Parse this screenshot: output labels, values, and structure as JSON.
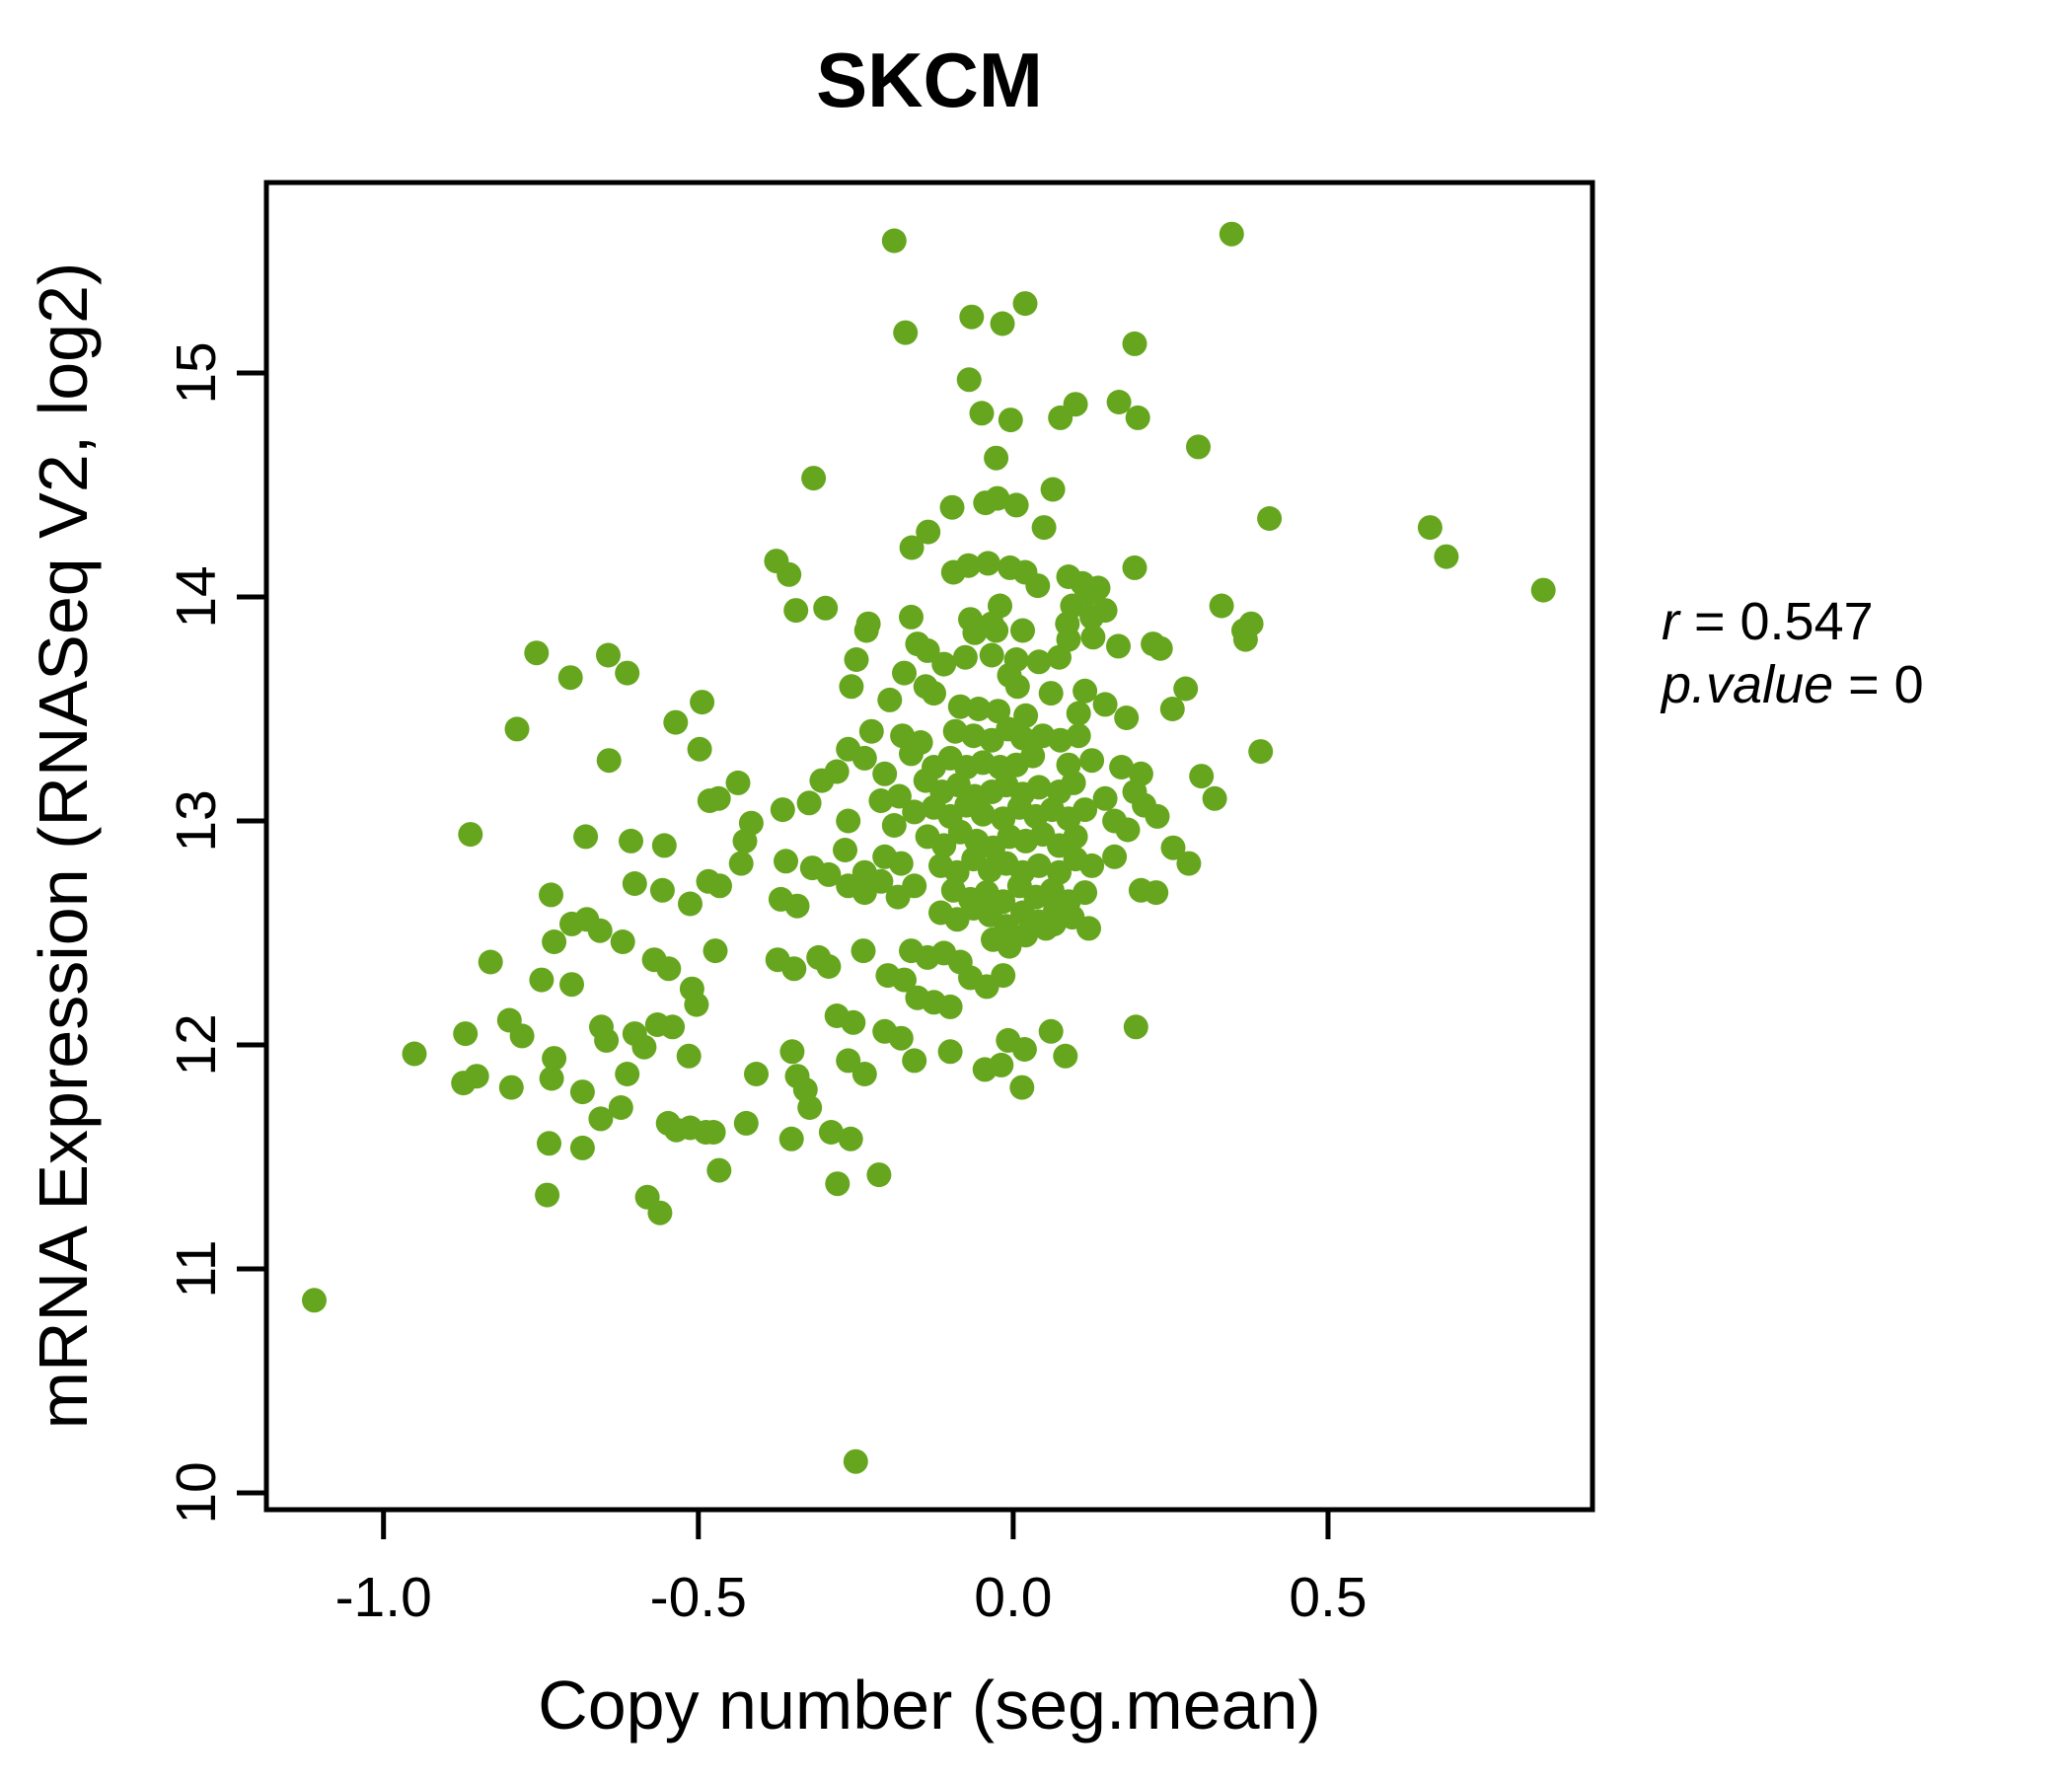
{
  "title": "SKCM",
  "colors": {
    "accent_green": "#66A61E",
    "axis_black": "#000000",
    "background": "#FFFFFF"
  },
  "annotation": {
    "line1_var": "r",
    "line1_rest": " = 0.547",
    "line2_var": "p.value",
    "line2_rest": " = 0"
  },
  "chart_data": {
    "type": "scatter",
    "title": "SKCM",
    "xlabel": "Copy number (seg.mean)",
    "ylabel": "mRNA Expression (RNASeq V2, log2)",
    "xlim": [
      -1.186,
      0.92
    ],
    "ylim": [
      9.925,
      15.85
    ],
    "xticks": [
      -1.0,
      -0.5,
      0.0,
      0.5
    ],
    "xtick_labels": [
      "-1.0",
      "-0.5",
      "0.0",
      "0.5"
    ],
    "yticks": [
      10,
      11,
      12,
      13,
      14,
      15
    ],
    "ytick_labels": [
      "10",
      "11",
      "12",
      "13",
      "14",
      "15"
    ],
    "grid": false,
    "legend": null,
    "correlation": {
      "r": 0.547,
      "p_value": 0
    },
    "points": [
      [
        -0.189,
        15.59
      ],
      [
        0.019,
        15.31
      ],
      [
        -0.066,
        15.25
      ],
      [
        -0.017,
        15.22
      ],
      [
        -0.171,
        15.18
      ],
      [
        0.193,
        15.13
      ],
      [
        -0.07,
        14.97
      ],
      [
        -0.05,
        14.82
      ],
      [
        -0.004,
        14.79
      ],
      [
        0.075,
        14.8
      ],
      [
        0.099,
        14.86
      ],
      [
        0.168,
        14.87
      ],
      [
        0.198,
        14.8
      ],
      [
        -0.027,
        14.62
      ],
      [
        -0.317,
        14.53
      ],
      [
        -0.097,
        14.4
      ],
      [
        -0.044,
        14.42
      ],
      [
        -0.025,
        14.44
      ],
      [
        0.005,
        14.41
      ],
      [
        0.063,
        14.48
      ],
      [
        0.049,
        14.31
      ],
      [
        -0.135,
        14.29
      ],
      [
        -0.161,
        14.22
      ],
      [
        -0.376,
        14.16
      ],
      [
        -0.356,
        14.1
      ],
      [
        -0.095,
        14.11
      ],
      [
        -0.071,
        14.14
      ],
      [
        -0.04,
        14.15
      ],
      [
        -0.005,
        14.13
      ],
      [
        0.019,
        14.11
      ],
      [
        0.039,
        14.05
      ],
      [
        0.088,
        14.09
      ],
      [
        0.11,
        14.06
      ],
      [
        0.125,
        14.03
      ],
      [
        0.193,
        14.13
      ],
      [
        -0.021,
        13.96
      ],
      [
        -0.162,
        13.91
      ],
      [
        -0.345,
        13.94
      ],
      [
        -0.298,
        13.95
      ],
      [
        -0.23,
        13.88
      ],
      [
        -0.068,
        13.9
      ],
      [
        -0.034,
        13.88
      ],
      [
        0.094,
        13.96
      ],
      [
        0.117,
        14.01
      ],
      [
        0.135,
        14.04
      ],
      [
        0.146,
        13.94
      ],
      [
        0.125,
        13.91
      ],
      [
        0.086,
        13.88
      ],
      [
        0.347,
        15.62
      ],
      [
        0.294,
        14.67
      ],
      [
        0.407,
        14.35
      ],
      [
        0.662,
        14.31
      ],
      [
        0.688,
        14.18
      ],
      [
        0.842,
        14.03
      ],
      [
        0.331,
        13.96
      ],
      [
        0.378,
        13.88
      ],
      [
        -0.757,
        13.75
      ],
      [
        -0.643,
        13.74
      ],
      [
        -0.703,
        13.64
      ],
      [
        -0.613,
        13.66
      ],
      [
        -0.536,
        13.44
      ],
      [
        -0.494,
        13.53
      ],
      [
        -0.788,
        13.41
      ],
      [
        -0.642,
        13.27
      ],
      [
        -0.498,
        13.32
      ],
      [
        -0.482,
        13.09
      ],
      [
        -0.862,
        12.94
      ],
      [
        -0.679,
        12.93
      ],
      [
        -0.607,
        12.91
      ],
      [
        -0.554,
        12.89
      ],
      [
        -0.601,
        12.72
      ],
      [
        -0.484,
        12.73
      ],
      [
        -0.734,
        12.67
      ],
      [
        -0.557,
        12.69
      ],
      [
        -0.513,
        12.63
      ],
      [
        -0.701,
        12.54
      ],
      [
        -0.677,
        12.56
      ],
      [
        -0.656,
        12.51
      ],
      [
        -0.62,
        12.46
      ],
      [
        -0.729,
        12.46
      ],
      [
        -0.57,
        12.38
      ],
      [
        -0.547,
        12.34
      ],
      [
        -0.83,
        12.37
      ],
      [
        -0.749,
        12.29
      ],
      [
        -0.701,
        12.27
      ],
      [
        -0.51,
        12.25
      ],
      [
        -0.503,
        12.18
      ],
      [
        -0.565,
        12.09
      ],
      [
        -0.8,
        12.11
      ],
      [
        -0.87,
        12.05
      ],
      [
        -0.78,
        12.04
      ],
      [
        -0.654,
        12.08
      ],
      [
        -0.646,
        12.02
      ],
      [
        -0.601,
        12.05
      ],
      [
        -0.586,
        11.99
      ],
      [
        -0.541,
        12.08
      ],
      [
        -0.951,
        11.96
      ],
      [
        -0.729,
        11.94
      ],
      [
        -0.515,
        11.95
      ],
      [
        0.234,
        13.77
      ],
      [
        0.369,
        13.81
      ],
      [
        0.366,
        13.85
      ],
      [
        0.274,
        13.59
      ],
      [
        0.253,
        13.5
      ],
      [
        0.393,
        13.31
      ],
      [
        0.299,
        13.2
      ],
      [
        0.32,
        13.1
      ],
      [
        0.229,
        13.02
      ],
      [
        0.254,
        12.88
      ],
      [
        0.279,
        12.81
      ],
      [
        0.227,
        12.68
      ],
      [
        -0.233,
        13.85
      ],
      [
        -0.152,
        13.79
      ],
      [
        -0.061,
        13.84
      ],
      [
        -0.027,
        13.85
      ],
      [
        0.015,
        13.85
      ],
      [
        0.088,
        13.81
      ],
      [
        0.127,
        13.82
      ],
      [
        0.167,
        13.78
      ],
      [
        0.222,
        13.79
      ],
      [
        -0.249,
        13.72
      ],
      [
        -0.136,
        13.76
      ],
      [
        -0.11,
        13.7
      ],
      [
        -0.076,
        13.73
      ],
      [
        -0.034,
        13.74
      ],
      [
        0.005,
        13.72
      ],
      [
        0.041,
        13.71
      ],
      [
        0.073,
        13.73
      ],
      [
        -0.257,
        13.6
      ],
      [
        -0.173,
        13.66
      ],
      [
        -0.139,
        13.6
      ],
      [
        -0.006,
        13.65
      ],
      [
        0.007,
        13.6
      ],
      [
        0.114,
        13.58
      ],
      [
        0.146,
        13.52
      ],
      [
        -0.196,
        13.54
      ],
      [
        -0.126,
        13.57
      ],
      [
        -0.084,
        13.51
      ],
      [
        -0.055,
        13.5
      ],
      [
        -0.024,
        13.49
      ],
      [
        0.02,
        13.47
      ],
      [
        0.06,
        13.57
      ],
      [
        0.104,
        13.48
      ],
      [
        0.18,
        13.46
      ],
      [
        -0.225,
        13.4
      ],
      [
        -0.176,
        13.38
      ],
      [
        -0.147,
        13.35
      ],
      [
        -0.092,
        13.4
      ],
      [
        -0.063,
        13.38
      ],
      [
        -0.034,
        13.36
      ],
      [
        -0.008,
        13.41
      ],
      [
        0.015,
        13.37
      ],
      [
        0.047,
        13.38
      ],
      [
        0.075,
        13.36
      ],
      [
        0.104,
        13.38
      ],
      [
        -0.262,
        13.32
      ],
      [
        -0.236,
        13.28
      ],
      [
        -0.162,
        13.3
      ],
      [
        -0.126,
        13.24
      ],
      [
        -0.1,
        13.28
      ],
      [
        -0.074,
        13.24
      ],
      [
        -0.048,
        13.26
      ],
      [
        -0.021,
        13.24
      ],
      [
        0.005,
        13.25
      ],
      [
        0.031,
        13.29
      ],
      [
        0.088,
        13.25
      ],
      [
        0.125,
        13.27
      ],
      [
        0.172,
        13.24
      ],
      [
        0.203,
        13.21
      ],
      [
        -0.304,
        13.18
      ],
      [
        -0.28,
        13.22
      ],
      [
        -0.204,
        13.21
      ],
      [
        -0.181,
        13.11
      ],
      [
        -0.139,
        13.18
      ],
      [
        -0.113,
        13.13
      ],
      [
        -0.087,
        13.16
      ],
      [
        -0.061,
        13.11
      ],
      [
        -0.034,
        13.13
      ],
      [
        -0.011,
        13.16
      ],
      [
        0.015,
        13.12
      ],
      [
        0.041,
        13.15
      ],
      [
        0.073,
        13.13
      ],
      [
        0.096,
        13.17
      ],
      [
        0.146,
        13.1
      ],
      [
        0.193,
        13.13
      ],
      [
        -0.324,
        13.08
      ],
      [
        -0.21,
        13.09
      ],
      [
        -0.157,
        13.04
      ],
      [
        -0.126,
        13.06
      ],
      [
        -0.1,
        13.02
      ],
      [
        -0.074,
        13.07
      ],
      [
        -0.048,
        13.03
      ],
      [
        -0.016,
        13.01
      ],
      [
        0.01,
        13.06
      ],
      [
        0.036,
        13.02
      ],
      [
        0.062,
        13.05
      ],
      [
        0.088,
        13.01
      ],
      [
        0.114,
        13.05
      ],
      [
        0.161,
        13.0
      ],
      [
        0.208,
        13.07
      ],
      [
        -0.437,
        13.17
      ],
      [
        -0.468,
        13.1
      ],
      [
        -0.366,
        13.05
      ],
      [
        -0.416,
        12.99
      ],
      [
        -0.262,
        13.0
      ],
      [
        -0.189,
        12.98
      ],
      [
        -0.136,
        12.93
      ],
      [
        -0.11,
        12.89
      ],
      [
        -0.084,
        12.95
      ],
      [
        -0.058,
        12.91
      ],
      [
        -0.032,
        12.88
      ],
      [
        -0.006,
        12.93
      ],
      [
        0.02,
        12.91
      ],
      [
        0.047,
        12.94
      ],
      [
        0.073,
        12.89
      ],
      [
        0.099,
        12.93
      ],
      [
        0.182,
        12.96
      ],
      [
        -0.426,
        12.91
      ],
      [
        -0.361,
        12.82
      ],
      [
        -0.319,
        12.79
      ],
      [
        -0.293,
        12.76
      ],
      [
        -0.267,
        12.87
      ],
      [
        -0.236,
        12.77
      ],
      [
        -0.204,
        12.84
      ],
      [
        -0.178,
        12.81
      ],
      [
        -0.115,
        12.8
      ],
      [
        -0.089,
        12.77
      ],
      [
        -0.063,
        12.83
      ],
      [
        -0.037,
        12.78
      ],
      [
        -0.011,
        12.81
      ],
      [
        0.015,
        12.77
      ],
      [
        0.041,
        12.8
      ],
      [
        0.073,
        12.77
      ],
      [
        0.099,
        12.83
      ],
      [
        0.125,
        12.8
      ],
      [
        0.161,
        12.84
      ],
      [
        -0.432,
        12.81
      ],
      [
        -0.466,
        12.71
      ],
      [
        -0.262,
        12.71
      ],
      [
        -0.236,
        12.68
      ],
      [
        -0.21,
        12.73
      ],
      [
        -0.183,
        12.66
      ],
      [
        -0.157,
        12.71
      ],
      [
        -0.095,
        12.69
      ],
      [
        -0.068,
        12.65
      ],
      [
        -0.042,
        12.68
      ],
      [
        -0.016,
        12.64
      ],
      [
        0.01,
        12.71
      ],
      [
        0.036,
        12.66
      ],
      [
        0.062,
        12.69
      ],
      [
        0.088,
        12.64
      ],
      [
        0.114,
        12.68
      ],
      [
        0.203,
        12.69
      ],
      [
        -0.369,
        12.65
      ],
      [
        -0.343,
        12.62
      ],
      [
        -0.115,
        12.59
      ],
      [
        -0.089,
        12.56
      ],
      [
        -0.063,
        12.61
      ],
      [
        -0.037,
        12.58
      ],
      [
        -0.011,
        12.53
      ],
      [
        0.015,
        12.59
      ],
      [
        0.041,
        12.55
      ],
      [
        0.067,
        12.6
      ],
      [
        0.094,
        12.57
      ],
      [
        0.12,
        12.52
      ],
      [
        0.052,
        12.52
      ],
      [
        -0.473,
        12.42
      ],
      [
        -0.374,
        12.38
      ],
      [
        -0.348,
        12.34
      ],
      [
        -0.238,
        12.42
      ],
      [
        -0.162,
        12.42
      ],
      [
        -0.136,
        12.39
      ],
      [
        -0.11,
        12.41
      ],
      [
        -0.084,
        12.37
      ],
      [
        -0.032,
        12.47
      ],
      [
        -0.006,
        12.44
      ],
      [
        0.02,
        12.49
      ],
      [
        0.065,
        12.54
      ],
      [
        -0.309,
        12.39
      ],
      [
        -0.293,
        12.35
      ],
      [
        -0.199,
        12.31
      ],
      [
        -0.173,
        12.29
      ],
      [
        -0.152,
        12.21
      ],
      [
        -0.126,
        12.19
      ],
      [
        -0.1,
        12.17
      ],
      [
        -0.068,
        12.3
      ],
      [
        -0.042,
        12.26
      ],
      [
        -0.016,
        12.31
      ],
      [
        -0.204,
        12.06
      ],
      [
        -0.178,
        12.03
      ],
      [
        0.06,
        12.06
      ],
      [
        -0.351,
        11.97
      ],
      [
        -0.262,
        11.93
      ],
      [
        -0.157,
        11.93
      ],
      [
        -0.1,
        11.97
      ],
      [
        -0.008,
        12.02
      ],
      [
        0.018,
        11.98
      ],
      [
        -0.28,
        12.13
      ],
      [
        -0.254,
        12.1
      ],
      [
        -0.045,
        11.89
      ],
      [
        -0.019,
        11.91
      ],
      [
        0.083,
        11.95
      ],
      [
        0.195,
        12.08
      ],
      [
        -0.873,
        11.83
      ],
      [
        -0.852,
        11.86
      ],
      [
        -0.797,
        11.81
      ],
      [
        -0.733,
        11.85
      ],
      [
        -0.684,
        11.79
      ],
      [
        -0.655,
        11.67
      ],
      [
        -0.623,
        11.72
      ],
      [
        -0.613,
        11.87
      ],
      [
        -0.737,
        11.56
      ],
      [
        -0.684,
        11.54
      ],
      [
        -0.548,
        11.65
      ],
      [
        -0.535,
        11.62
      ],
      [
        -0.513,
        11.63
      ],
      [
        -0.488,
        11.61
      ],
      [
        -0.74,
        11.33
      ],
      [
        -0.581,
        11.32
      ],
      [
        -0.561,
        11.25
      ],
      [
        -1.11,
        10.86
      ],
      [
        -0.408,
        11.87
      ],
      [
        -0.343,
        11.86
      ],
      [
        -0.33,
        11.8
      ],
      [
        -0.323,
        11.72
      ],
      [
        -0.236,
        11.87
      ],
      [
        -0.424,
        11.65
      ],
      [
        -0.476,
        11.61
      ],
      [
        -0.352,
        11.58
      ],
      [
        -0.289,
        11.61
      ],
      [
        -0.258,
        11.58
      ],
      [
        -0.467,
        11.44
      ],
      [
        -0.279,
        11.38
      ],
      [
        -0.213,
        11.42
      ],
      [
        0.014,
        11.81
      ],
      [
        -0.25,
        10.14
      ]
    ]
  }
}
